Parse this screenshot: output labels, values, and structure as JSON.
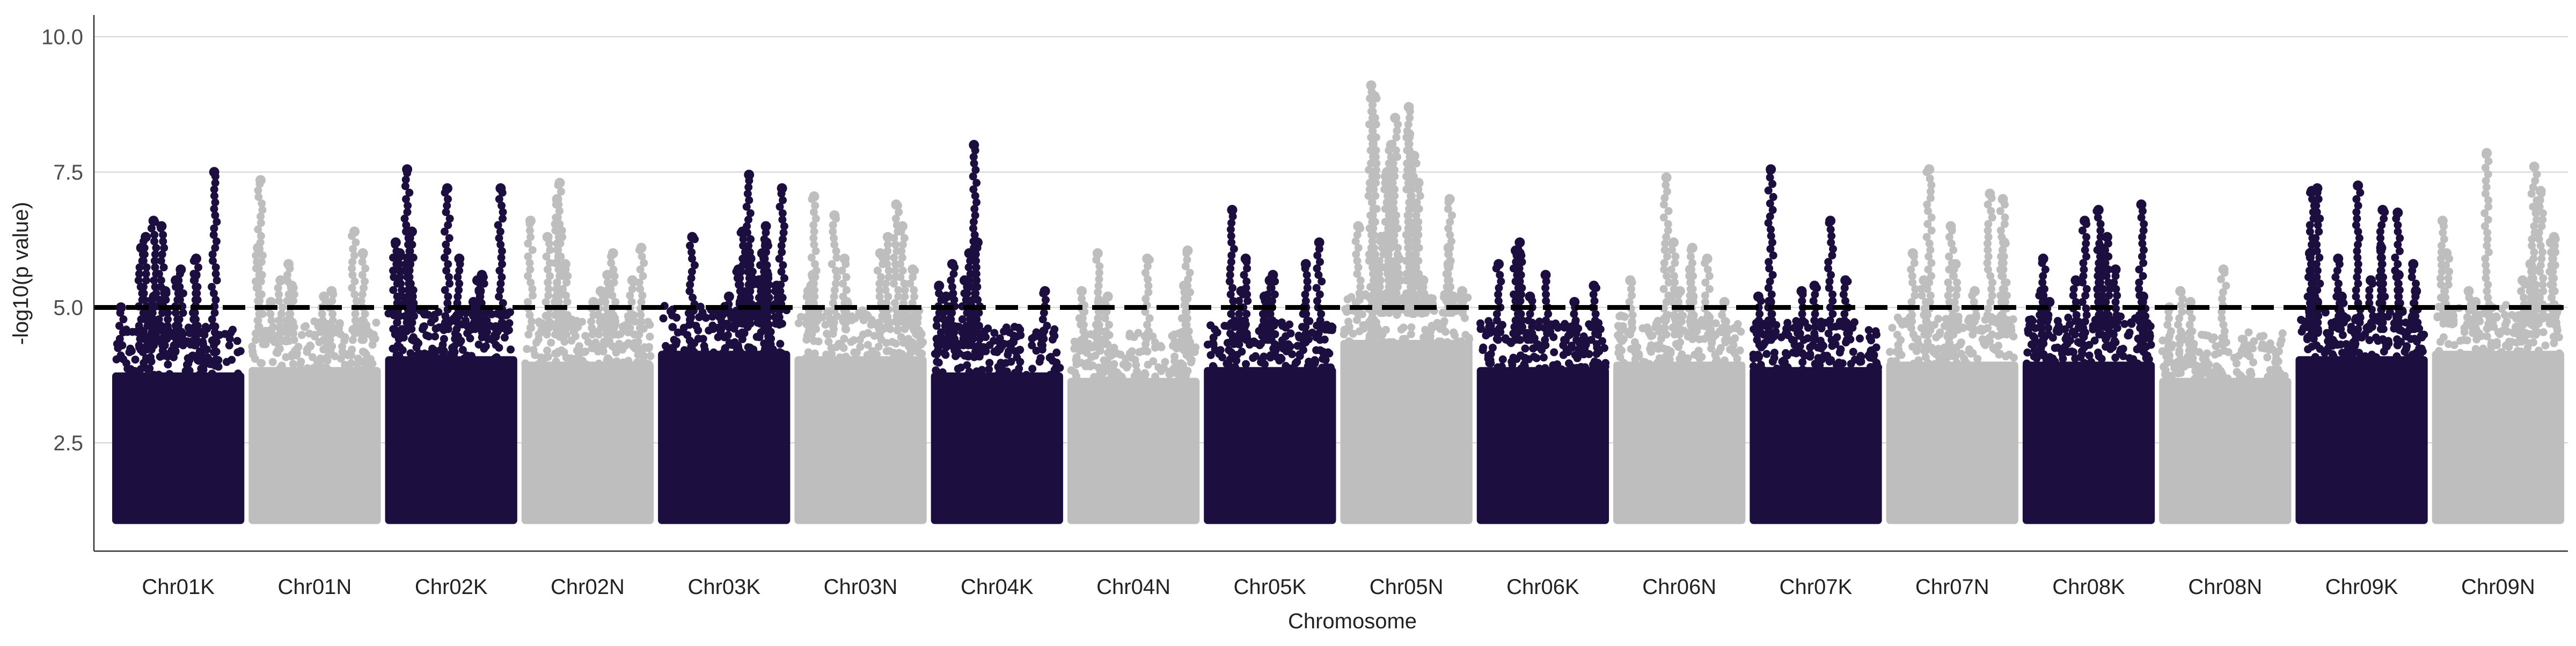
{
  "chart_data": {
    "type": "scatter",
    "title": "",
    "xlabel": "Chromosome",
    "ylabel": "-log10(p value)",
    "ylim": [
      0.5,
      10.4
    ],
    "yticks": [
      2.5,
      5.0,
      7.5,
      10.0
    ],
    "yticks_labels": [
      "2.5",
      "5.0",
      "7.5",
      "10.0"
    ],
    "threshold": 5.0,
    "grid": "horizontal major",
    "legend": "none",
    "colors": {
      "odd": "#1c0f40",
      "even": "#bebebe",
      "threshold": "#000000",
      "grid": "#d3d3d3",
      "axis": "#333333"
    },
    "categories": [
      "Chr01K",
      "Chr01N",
      "Chr02K",
      "Chr02N",
      "Chr03K",
      "Chr03N",
      "Chr04K",
      "Chr04N",
      "Chr05K",
      "Chr05N",
      "Chr06K",
      "Chr06N",
      "Chr07K",
      "Chr07N",
      "Chr08K",
      "Chr08N",
      "Chr09K",
      "Chr09N"
    ],
    "series": [
      {
        "category": "Chr01K",
        "base_max": 4.3,
        "top_points": [
          7.5,
          6.6,
          6.5,
          6.3,
          6.1,
          5.9,
          5.7,
          5.6,
          5.5,
          5.3,
          5.2,
          5.0
        ]
      },
      {
        "category": "Chr01N",
        "base_max": 4.4,
        "top_points": [
          7.35,
          6.4,
          6.1,
          6.0,
          5.8,
          5.5,
          5.4,
          5.3,
          5.2,
          5.1
        ]
      },
      {
        "category": "Chr02K",
        "base_max": 4.6,
        "top_points": [
          7.55,
          7.2,
          7.2,
          6.4,
          6.2,
          6.0,
          5.9,
          5.8,
          5.6,
          5.5,
          5.3,
          5.2,
          5.1
        ]
      },
      {
        "category": "Chr02N",
        "base_max": 4.5,
        "top_points": [
          7.3,
          7.0,
          6.6,
          6.3,
          6.1,
          6.0,
          5.8,
          5.6,
          5.5,
          5.3,
          5.2,
          5.1
        ]
      },
      {
        "category": "Chr03K",
        "base_max": 4.7,
        "top_points": [
          7.45,
          7.2,
          6.5,
          6.4,
          6.3,
          6.2,
          6.0,
          5.9,
          5.7,
          5.6,
          5.5,
          5.4,
          5.2,
          5.1
        ]
      },
      {
        "category": "Chr03N",
        "base_max": 4.6,
        "top_points": [
          7.05,
          6.9,
          6.7,
          6.5,
          6.3,
          6.0,
          5.9,
          5.7,
          5.6,
          5.4,
          5.3,
          5.1
        ]
      },
      {
        "category": "Chr04K",
        "base_max": 4.3,
        "top_points": [
          8.0,
          6.2,
          6.0,
          5.8,
          5.5,
          5.4,
          5.3,
          5.2,
          5.0
        ]
      },
      {
        "category": "Chr04N",
        "base_max": 4.2,
        "top_points": [
          6.05,
          6.0,
          5.9,
          5.4,
          5.3,
          5.2,
          5.1,
          5.0
        ]
      },
      {
        "category": "Chr05K",
        "base_max": 4.4,
        "top_points": [
          6.8,
          6.2,
          5.9,
          5.8,
          5.6,
          5.5,
          5.3,
          5.2,
          5.1,
          5.0
        ]
      },
      {
        "category": "Chr05N",
        "base_max": 4.9,
        "top_points": [
          9.1,
          8.9,
          8.7,
          8.5,
          8.2,
          8.0,
          7.8,
          7.5,
          7.3,
          7.0,
          6.8,
          6.5,
          6.3,
          6.1,
          5.9,
          5.8,
          5.6,
          5.5,
          5.3,
          5.2
        ]
      },
      {
        "category": "Chr06K",
        "base_max": 4.4,
        "top_points": [
          6.2,
          6.05,
          6.0,
          5.8,
          5.6,
          5.4,
          5.2,
          5.1
        ]
      },
      {
        "category": "Chr06N",
        "base_max": 4.5,
        "top_points": [
          7.4,
          6.2,
          6.1,
          5.9,
          5.7,
          5.5,
          5.3,
          5.2,
          5.1
        ]
      },
      {
        "category": "Chr07K",
        "base_max": 4.4,
        "top_points": [
          7.55,
          6.6,
          5.5,
          5.4,
          5.3,
          5.2,
          5.1
        ]
      },
      {
        "category": "Chr07N",
        "base_max": 4.5,
        "top_points": [
          7.55,
          7.1,
          7.0,
          6.5,
          6.2,
          6.0,
          5.8,
          5.5,
          5.3,
          5.1
        ]
      },
      {
        "category": "Chr08K",
        "base_max": 4.5,
        "top_points": [
          6.9,
          6.8,
          6.6,
          6.3,
          6.1,
          5.9,
          5.7,
          5.5,
          5.3,
          5.2,
          5.1
        ]
      },
      {
        "category": "Chr08N",
        "base_max": 4.2,
        "top_points": [
          5.7,
          5.3,
          5.1,
          5.0
        ]
      },
      {
        "category": "Chr09K",
        "base_max": 4.6,
        "top_points": [
          7.25,
          7.2,
          7.15,
          6.8,
          6.75,
          6.1,
          6.0,
          5.9,
          5.8,
          5.6,
          5.5,
          5.3,
          5.2,
          5.1
        ]
      },
      {
        "category": "Chr09N",
        "base_max": 4.7,
        "top_points": [
          7.85,
          7.6,
          7.15,
          6.6,
          6.3,
          6.2,
          6.0,
          5.8,
          5.7,
          5.5,
          5.3,
          5.1
        ]
      }
    ]
  }
}
